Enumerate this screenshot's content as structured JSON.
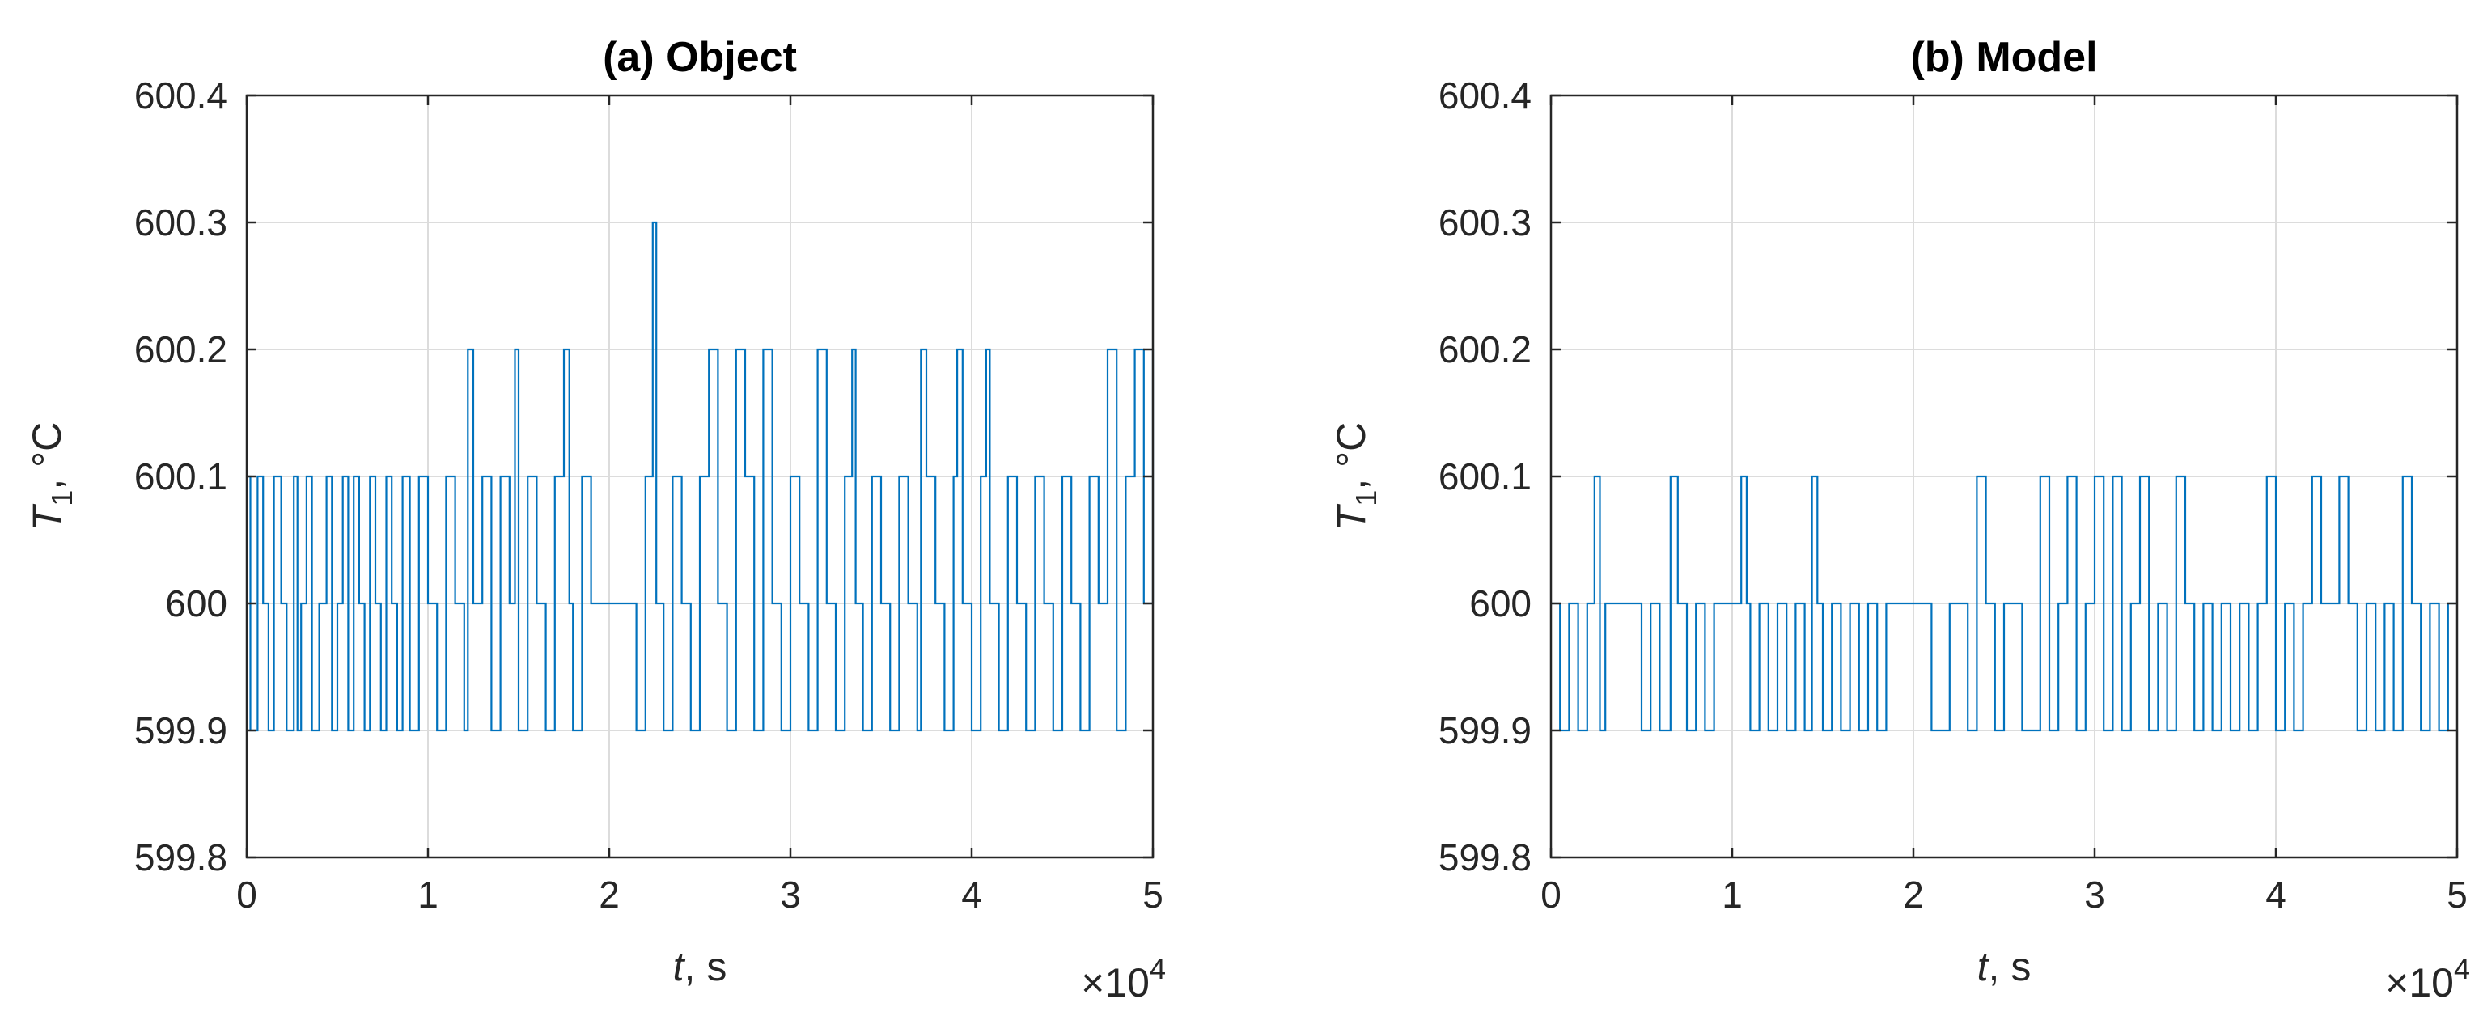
{
  "chart_data": [
    {
      "type": "line",
      "title": "(a) Object",
      "ylabel_symbol": "T",
      "ylabel_subscript": "1",
      "ylabel_unit": ", °C",
      "xlabel_symbol": "t",
      "xlabel_unit": ", s",
      "x_exponent_label": "×10",
      "x_exponent_power": "4",
      "xlim": [
        0,
        5
      ],
      "ylim": [
        599.8,
        600.4
      ],
      "xticks": [
        0,
        1,
        2,
        3,
        4,
        5
      ],
      "xtick_labels": [
        "0",
        "1",
        "2",
        "3",
        "4",
        "5"
      ],
      "yticks": [
        599.8,
        599.9,
        600,
        600.1,
        600.2,
        600.3,
        600.4
      ],
      "ytick_labels": [
        "599.8",
        "599.9",
        "600",
        "600.1",
        "600.2",
        "600.3",
        "600.4"
      ],
      "grid": true,
      "series": [
        {
          "color": "#0072BD",
          "x": [
            0.0,
            0.02,
            0.06,
            0.09,
            0.12,
            0.15,
            0.19,
            0.22,
            0.26,
            0.28,
            0.3,
            0.33,
            0.36,
            0.4,
            0.44,
            0.47,
            0.5,
            0.53,
            0.56,
            0.59,
            0.62,
            0.65,
            0.68,
            0.71,
            0.74,
            0.77,
            0.8,
            0.83,
            0.86,
            0.9,
            0.95,
            1.0,
            1.05,
            1.1,
            1.15,
            1.2,
            1.22,
            1.25,
            1.3,
            1.35,
            1.4,
            1.45,
            1.48,
            1.5,
            1.55,
            1.6,
            1.65,
            1.7,
            1.75,
            1.78,
            1.8,
            1.85,
            1.9,
            1.95,
            2.0,
            2.05,
            2.1,
            2.15,
            2.2,
            2.24,
            2.26,
            2.3,
            2.35,
            2.4,
            2.45,
            2.5,
            2.55,
            2.6,
            2.65,
            2.7,
            2.75,
            2.8,
            2.85,
            2.9,
            2.95,
            3.0,
            3.05,
            3.1,
            3.15,
            3.2,
            3.25,
            3.3,
            3.34,
            3.36,
            3.4,
            3.45,
            3.5,
            3.55,
            3.6,
            3.65,
            3.7,
            3.72,
            3.75,
            3.8,
            3.85,
            3.9,
            3.92,
            3.95,
            4.0,
            4.05,
            4.08,
            4.1,
            4.15,
            4.2,
            4.25,
            4.3,
            4.35,
            4.4,
            4.45,
            4.5,
            4.55,
            4.6,
            4.65,
            4.7,
            4.75,
            4.8,
            4.85,
            4.9,
            4.95,
            5.0
          ],
          "y": [
            600.1,
            599.9,
            600.1,
            600.0,
            599.9,
            600.1,
            600.0,
            599.9,
            600.1,
            599.9,
            600.0,
            600.1,
            599.9,
            600.0,
            600.1,
            599.9,
            600.0,
            600.1,
            599.9,
            600.1,
            600.0,
            599.9,
            600.1,
            600.0,
            599.9,
            600.1,
            600.0,
            599.9,
            600.1,
            599.9,
            600.1,
            600.0,
            599.9,
            600.1,
            600.0,
            599.9,
            600.2,
            600.0,
            600.1,
            599.9,
            600.1,
            600.0,
            600.2,
            599.9,
            600.1,
            600.0,
            599.9,
            600.1,
            600.2,
            600.0,
            599.9,
            600.1,
            600.0,
            600.0,
            600.0,
            600.0,
            600.0,
            599.9,
            600.1,
            600.3,
            600.0,
            599.9,
            600.1,
            600.0,
            599.9,
            600.1,
            600.2,
            600.0,
            599.9,
            600.2,
            600.1,
            599.9,
            600.2,
            600.0,
            599.9,
            600.1,
            600.0,
            599.9,
            600.2,
            600.0,
            599.9,
            600.1,
            600.2,
            600.0,
            599.9,
            600.1,
            600.0,
            599.9,
            600.1,
            600.0,
            599.9,
            600.2,
            600.1,
            600.0,
            599.9,
            600.1,
            600.2,
            600.0,
            599.9,
            600.1,
            600.2,
            600.0,
            599.9,
            600.1,
            600.0,
            599.9,
            600.1,
            600.0,
            599.9,
            600.1,
            600.0,
            599.9,
            600.1,
            600.0,
            600.2,
            599.9,
            600.1,
            600.2,
            600.0,
            600.2
          ]
        }
      ]
    },
    {
      "type": "line",
      "title": "(b) Model",
      "ylabel_symbol": "T",
      "ylabel_subscript": "1",
      "ylabel_unit": ", °C",
      "xlabel_symbol": "t",
      "xlabel_unit": ", s",
      "x_exponent_label": "×10",
      "x_exponent_power": "4",
      "xlim": [
        0,
        5
      ],
      "ylim": [
        599.8,
        600.4
      ],
      "xticks": [
        0,
        1,
        2,
        3,
        4,
        5
      ],
      "xtick_labels": [
        "0",
        "1",
        "2",
        "3",
        "4",
        "5"
      ],
      "yticks": [
        599.8,
        599.9,
        600,
        600.1,
        600.2,
        600.3,
        600.4
      ],
      "ytick_labels": [
        "599.8",
        "599.9",
        "600",
        "600.1",
        "600.2",
        "600.3",
        "600.4"
      ],
      "grid": true,
      "series": [
        {
          "color": "#0072BD",
          "x": [
            0.0,
            0.05,
            0.1,
            0.15,
            0.2,
            0.24,
            0.27,
            0.3,
            0.35,
            0.4,
            0.45,
            0.5,
            0.55,
            0.6,
            0.66,
            0.7,
            0.75,
            0.8,
            0.85,
            0.9,
            0.95,
            1.0,
            1.05,
            1.08,
            1.1,
            1.15,
            1.2,
            1.25,
            1.3,
            1.35,
            1.4,
            1.44,
            1.47,
            1.5,
            1.55,
            1.6,
            1.65,
            1.7,
            1.75,
            1.8,
            1.85,
            1.9,
            1.95,
            2.0,
            2.1,
            2.2,
            2.3,
            2.35,
            2.4,
            2.45,
            2.5,
            2.6,
            2.7,
            2.75,
            2.8,
            2.85,
            2.9,
            2.95,
            3.0,
            3.05,
            3.1,
            3.15,
            3.2,
            3.25,
            3.3,
            3.35,
            3.4,
            3.45,
            3.5,
            3.55,
            3.6,
            3.65,
            3.7,
            3.75,
            3.8,
            3.85,
            3.9,
            3.95,
            4.0,
            4.05,
            4.1,
            4.15,
            4.2,
            4.25,
            4.3,
            4.35,
            4.4,
            4.45,
            4.5,
            4.55,
            4.6,
            4.65,
            4.7,
            4.75,
            4.8,
            4.85,
            4.9,
            4.95,
            5.0
          ],
          "y": [
            600.0,
            599.9,
            600.0,
            599.9,
            600.0,
            600.1,
            599.9,
            600.0,
            600.0,
            600.0,
            600.0,
            599.9,
            600.0,
            599.9,
            600.1,
            600.0,
            599.9,
            600.0,
            599.9,
            600.0,
            600.0,
            600.0,
            600.1,
            600.0,
            599.9,
            600.0,
            599.9,
            600.0,
            599.9,
            600.0,
            599.9,
            600.1,
            600.0,
            599.9,
            600.0,
            599.9,
            600.0,
            599.9,
            600.0,
            599.9,
            600.0,
            600.0,
            600.0,
            600.0,
            599.9,
            600.0,
            599.9,
            600.1,
            600.0,
            599.9,
            600.0,
            599.9,
            600.1,
            599.9,
            600.0,
            600.1,
            599.9,
            600.0,
            600.1,
            599.9,
            600.1,
            599.9,
            600.0,
            600.1,
            599.9,
            600.0,
            599.9,
            600.1,
            600.0,
            599.9,
            600.0,
            599.9,
            600.0,
            599.9,
            600.0,
            599.9,
            600.0,
            600.1,
            599.9,
            600.0,
            599.9,
            600.0,
            600.1,
            600.0,
            600.0,
            600.1,
            600.0,
            599.9,
            600.0,
            599.9,
            600.0,
            599.9,
            600.1,
            600.0,
            599.9,
            600.0,
            599.9,
            600.0,
            600.0
          ]
        }
      ]
    }
  ]
}
